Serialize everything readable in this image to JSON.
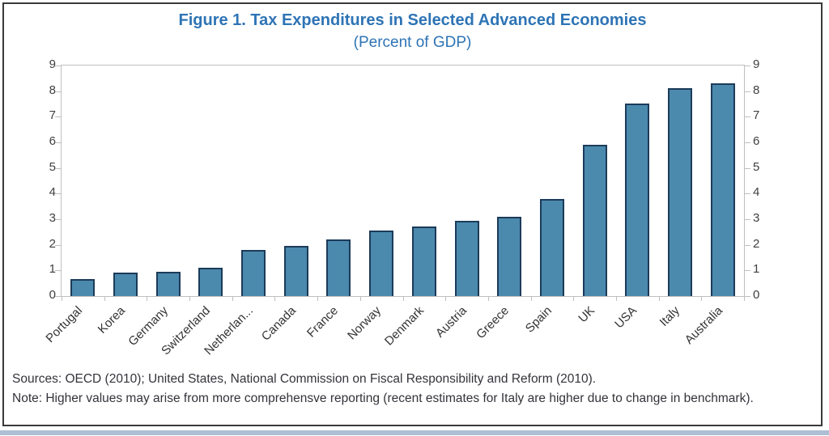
{
  "figure": {
    "title": "Figure 1. Tax Expenditures in Selected Advanced Economies",
    "subtitle": "(Percent of GDP)",
    "source_line": "Sources: OECD (2010); United States, National Commission on Fiscal Responsibility and Reform (2010).",
    "note_line": "Note: Higher values may arise from more comprehensve reporting (recent estimates for Italy are higher due to change in benchmark)."
  },
  "colors": {
    "title_blue": "#2E74B5",
    "bar_fill": "#4B89AD",
    "bar_border": "#1C3B5A",
    "axis_line": "#BFBFBF",
    "tick_label": "#404040",
    "footer_text": "#33333A",
    "frame_border": "#3A3A3A",
    "bottom_band": "#AEBFD4"
  },
  "chart_data": {
    "type": "bar",
    "title": "Figure 1. Tax Expenditures in Selected Advanced Economies",
    "subtitle": "(Percent of GDP)",
    "categories": [
      "Portugal",
      "Korea",
      "Germany",
      "Switzerland",
      "Netherlan...",
      "Canada",
      "France",
      "Norway",
      "Denmark",
      "Austria",
      "Greece",
      "Spain",
      "UK",
      "USA",
      "Italy",
      "Australia"
    ],
    "values": [
      0.65,
      0.9,
      0.95,
      1.1,
      1.8,
      1.95,
      2.2,
      2.55,
      2.7,
      2.95,
      3.1,
      3.8,
      5.9,
      7.5,
      8.1,
      8.3
    ],
    "xlabel": "",
    "ylabel": "",
    "ylim": [
      0,
      9
    ],
    "yticks": [
      0,
      1,
      2,
      3,
      4,
      5,
      6,
      7,
      8,
      9
    ],
    "dual_y_axis": true,
    "grid": false,
    "legend_position": "none"
  }
}
